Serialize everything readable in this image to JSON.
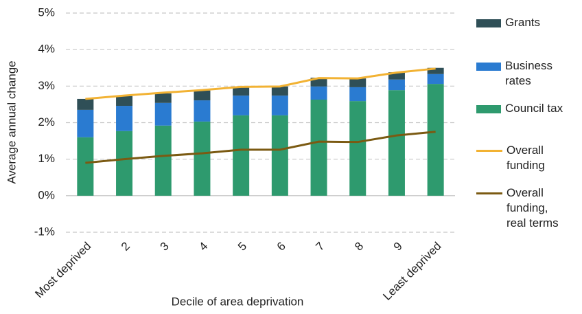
{
  "chart_data": {
    "type": "bar",
    "stacked": true,
    "x_label": "Decile of area deprivation",
    "y_label": "Average annual change",
    "categories": [
      "Most deprived",
      "2",
      "3",
      "4",
      "5",
      "6",
      "7",
      "8",
      "9",
      "Least deprived"
    ],
    "ylim": [
      -1,
      5
    ],
    "yticks": [
      {
        "value": -1,
        "label": "-1%"
      },
      {
        "value": 0,
        "label": "0%"
      },
      {
        "value": 1,
        "label": "1%"
      },
      {
        "value": 2,
        "label": "2%"
      },
      {
        "value": 3,
        "label": "3%"
      },
      {
        "value": 4,
        "label": "4%"
      },
      {
        "value": 5,
        "label": "5%"
      }
    ],
    "grid": true,
    "legend": "right",
    "series": [
      {
        "name": "Grants",
        "type": "bar",
        "color": "#2f4f57",
        "values": [
          0.3,
          0.27,
          0.26,
          0.27,
          0.23,
          0.25,
          0.24,
          0.24,
          0.2,
          0.17
        ]
      },
      {
        "name": "Business rates",
        "type": "bar",
        "color": "#2a7bd1",
        "values": [
          0.75,
          0.69,
          0.62,
          0.58,
          0.54,
          0.54,
          0.36,
          0.38,
          0.29,
          0.27
        ]
      },
      {
        "name": "Council tax",
        "type": "bar",
        "color": "#2e9a6e",
        "values": [
          1.6,
          1.77,
          1.92,
          2.03,
          2.2,
          2.2,
          2.63,
          2.59,
          2.89,
          3.06
        ]
      },
      {
        "name": "Overall funding",
        "type": "line",
        "color": "#f2b233",
        "values": [
          2.65,
          2.74,
          2.82,
          2.89,
          2.98,
          2.99,
          3.22,
          3.21,
          3.37,
          3.48
        ]
      },
      {
        "name": "Overall funding, real terms",
        "type": "line",
        "color": "#7b5a12",
        "values": [
          0.9,
          1.0,
          1.09,
          1.16,
          1.26,
          1.26,
          1.48,
          1.47,
          1.65,
          1.75
        ]
      }
    ]
  }
}
